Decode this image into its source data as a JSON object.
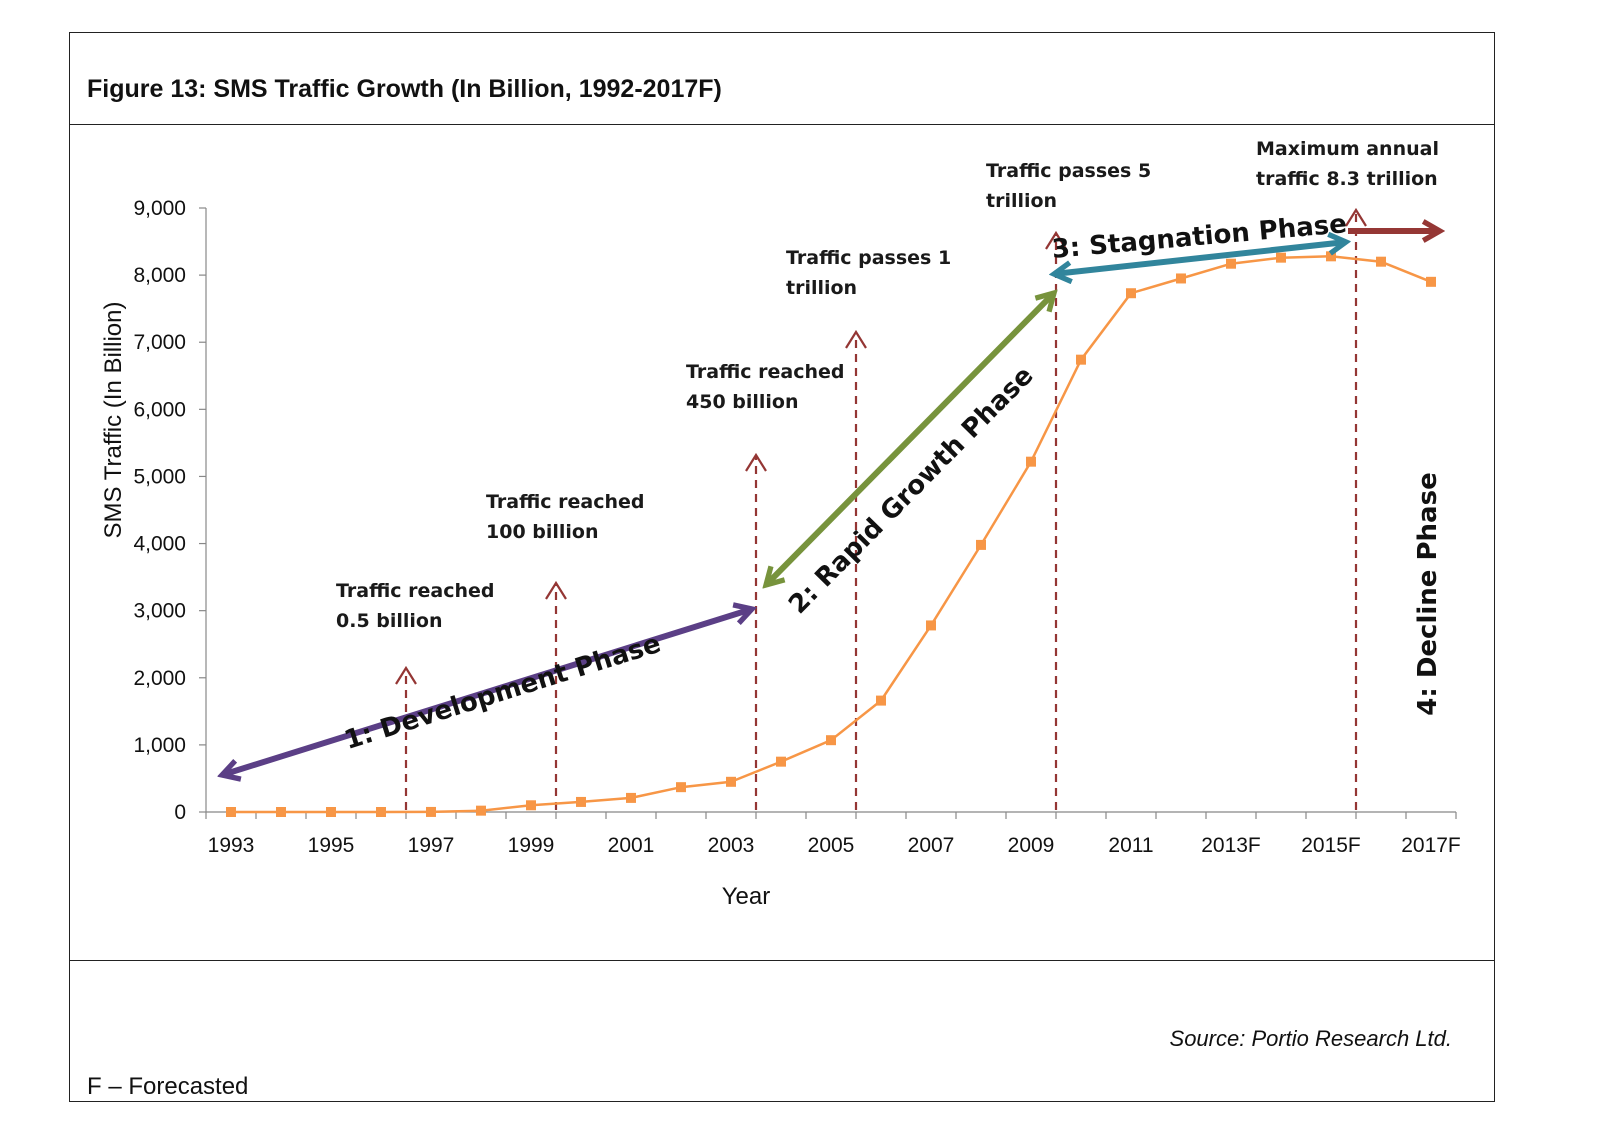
{
  "figure": {
    "title": "Figure 13:  SMS Traffic Growth (In Billion, 1992-2017F)",
    "source": "Source: Portio Research Ltd.",
    "footnote": "F – Forecasted"
  },
  "chart_data": {
    "type": "line",
    "xlabel": "Year",
    "ylabel": "SMS Traffic (In Billion)",
    "ylim": [
      0,
      9000
    ],
    "yticks": [
      "0",
      "1,000",
      "2,000",
      "3,000",
      "4,000",
      "5,000",
      "6,000",
      "7,000",
      "8,000",
      "9,000"
    ],
    "x_tick_labels": [
      "1993",
      "1995",
      "1997",
      "1999",
      "2001",
      "2003",
      "2005",
      "2007",
      "2009",
      "2011",
      "2013F",
      "2015F",
      "2017F"
    ],
    "categories": [
      "1993",
      "1994",
      "1995",
      "1996",
      "1997",
      "1998",
      "1999",
      "2000",
      "2001",
      "2002",
      "2003",
      "2004",
      "2005",
      "2006",
      "2007",
      "2008",
      "2009",
      "2010",
      "2011",
      "2012",
      "2013F",
      "2014F",
      "2015F",
      "2016F",
      "2017F"
    ],
    "series": [
      {
        "values": [
          0,
          0,
          0,
          0,
          1,
          20,
          100,
          150,
          210,
          370,
          450,
          750,
          1070,
          1660,
          2780,
          3980,
          5220,
          6740,
          7730,
          7950,
          8170,
          8260,
          8280,
          8200,
          7900
        ],
        "color": "#F79646"
      }
    ],
    "grid": false,
    "legend": "none",
    "milestones": [
      {
        "label_lines": [
          "Traffic reached",
          "0.5 billion"
        ],
        "at": 1996.5
      },
      {
        "label_lines": [
          "Traffic reached",
          "100 billion"
        ],
        "at": 1999.5
      },
      {
        "label_lines": [
          "Traffic reached",
          "450 billion"
        ],
        "at": 2003.5
      },
      {
        "label_lines": [
          "Traffic passes 1",
          "trillion"
        ],
        "at": 2005.5
      },
      {
        "label_lines": [
          "Traffic passes 5",
          "trillion"
        ],
        "at": 2009.5
      },
      {
        "label_lines": [
          "Maximum annual",
          "traffic 8.3 trillion"
        ],
        "at": 2015.5
      }
    ],
    "phases": [
      {
        "label": "1: Development Phase",
        "color": "#5B3F86"
      },
      {
        "label": "2: Rapid Growth Phase",
        "color": "#77933C"
      },
      {
        "label": "3: Stagnation Phase",
        "color": "#31859C"
      },
      {
        "label": "4: Decline Phase",
        "color": "#953735"
      }
    ],
    "milestone_color": "#943634"
  }
}
